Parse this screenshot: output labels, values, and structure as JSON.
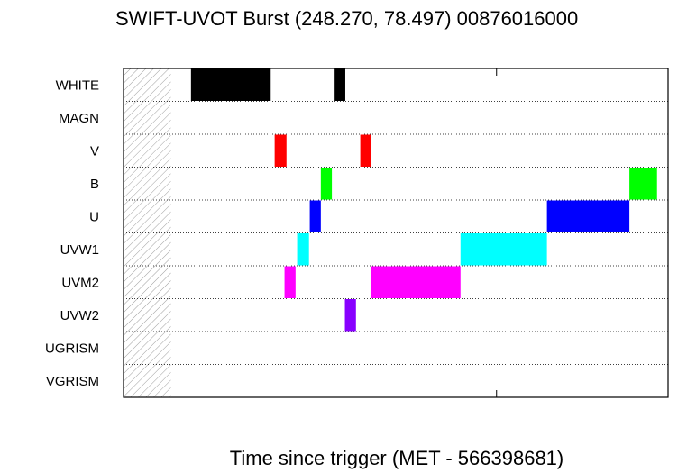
{
  "chart_data": {
    "type": "timeline",
    "title": "SWIFT-UVOT Burst (248.270, 78.497) 00876016000",
    "xlabel": "Time since trigger (MET - 566398681)",
    "filters": [
      "WHITE",
      "MAGN",
      "V",
      "B",
      "U",
      "UVW1",
      "UVM2",
      "UVW2",
      "UGRISM",
      "VGRISM"
    ],
    "colors": {
      "WHITE": "#000000",
      "V": "#ff0000",
      "B": "#00ff00",
      "U": "#0000ff",
      "UVW1": "#00ffff",
      "UVM2": "#ff00ff",
      "UVW2": "#8800ff"
    },
    "exposures": [
      {
        "filter": "WHITE",
        "start": 171,
        "end": 373
      },
      {
        "filter": "WHITE",
        "start": 535,
        "end": 562
      },
      {
        "filter": "V",
        "start": 383,
        "end": 413
      },
      {
        "filter": "V",
        "start": 600,
        "end": 628
      },
      {
        "filter": "B",
        "start": 500,
        "end": 528
      },
      {
        "filter": "B",
        "start": 1282,
        "end": 1352
      },
      {
        "filter": "U",
        "start": 472,
        "end": 500
      },
      {
        "filter": "U",
        "start": 1073,
        "end": 1282
      },
      {
        "filter": "UVW1",
        "start": 440,
        "end": 470
      },
      {
        "filter": "UVW1",
        "start": 854,
        "end": 1073
      },
      {
        "filter": "UVM2",
        "start": 408,
        "end": 436
      },
      {
        "filter": "UVM2",
        "start": 628,
        "end": 854
      },
      {
        "filter": "UVW2",
        "start": 561,
        "end": 589
      }
    ],
    "xlim": [
      0,
      1380
    ],
    "hatched_region": [
      0,
      120
    ],
    "grid": "horizontal dotted between filter rows",
    "legend": "none"
  }
}
